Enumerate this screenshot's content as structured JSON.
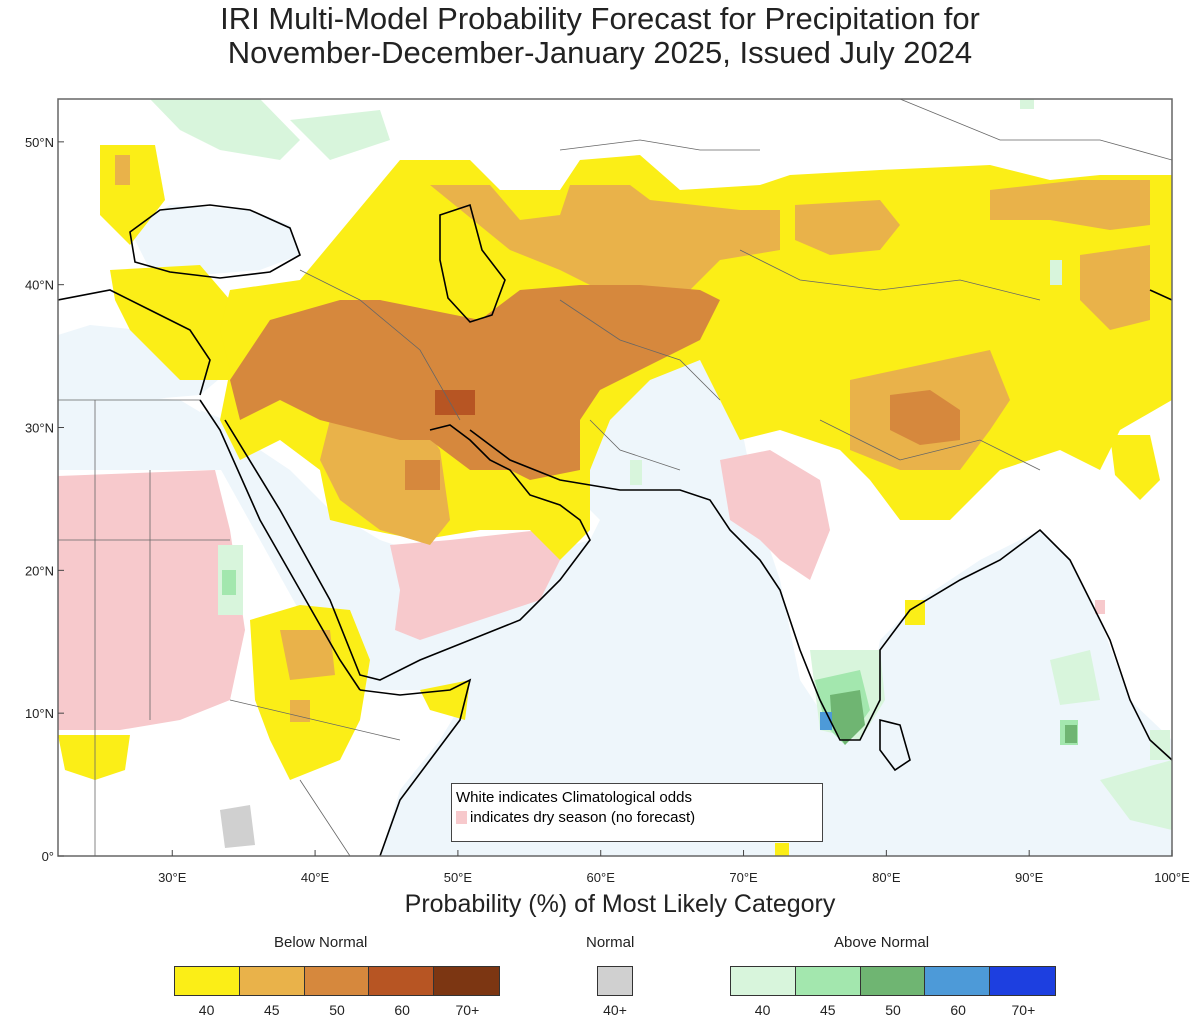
{
  "title": {
    "line1": "IRI Multi-Model Probability Forecast for Precipitation for",
    "line2": "November-December-January 2025, Issued July 2024"
  },
  "axes": {
    "lat_labels": [
      "50°N",
      "40°N",
      "30°N",
      "20°N",
      "10°N",
      "0°"
    ],
    "lon_labels": [
      "30°E",
      "40°E",
      "50°E",
      "60°E",
      "70°E",
      "80°E",
      "90°E",
      "100°E"
    ],
    "lat_values": [
      50,
      40,
      30,
      20,
      10,
      0
    ],
    "lon_values": [
      30,
      40,
      50,
      60,
      70,
      80,
      90,
      100
    ],
    "lon_range": [
      22,
      100
    ],
    "lat_range": [
      0,
      53
    ],
    "xlabel": "Probability (%) of Most Likely Category"
  },
  "note": {
    "line1": "White indicates Climatological odds",
    "line2": "indicates dry season (no forecast)"
  },
  "colorbars": {
    "below": {
      "title": "Below Normal",
      "colors": [
        "#fbee17",
        "#e9b24a",
        "#d6883d",
        "#b75523",
        "#7c3612"
      ],
      "labels": [
        "40",
        "45",
        "50",
        "60",
        "70+"
      ]
    },
    "normal": {
      "title": "Normal",
      "colors": [
        "#d0d0d0"
      ],
      "labels": [
        "40+"
      ]
    },
    "above": {
      "title": "Above Normal",
      "colors": [
        "#d8f5dc",
        "#a3e7ae",
        "#6fb572",
        "#4d9ad8",
        "#1d3fe0"
      ],
      "labels": [
        "40",
        "45",
        "50",
        "60",
        "70+"
      ]
    }
  },
  "colors": {
    "ocean_tint": "#eef6fb",
    "dry_season": "#f7c9cc",
    "coastline": "#000000"
  }
}
